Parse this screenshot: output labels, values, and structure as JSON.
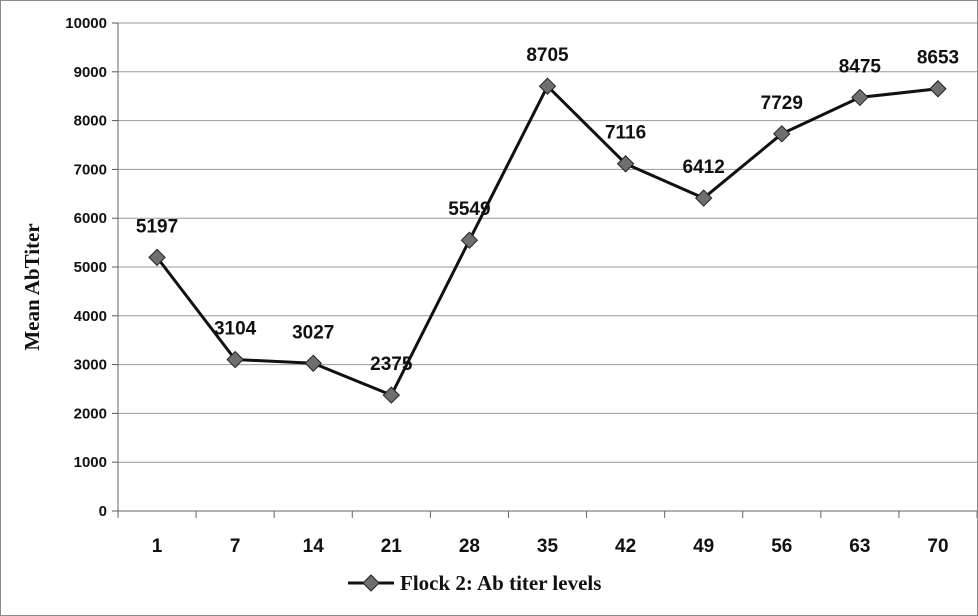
{
  "chart_data": {
    "type": "line",
    "categories": [
      "1",
      "7",
      "14",
      "21",
      "28",
      "35",
      "42",
      "49",
      "56",
      "63",
      "70"
    ],
    "series": [
      {
        "name": "Flock 2: Ab titer levels",
        "values": [
          5197,
          3104,
          3027,
          2375,
          5549,
          8705,
          7116,
          6412,
          7729,
          8475,
          8653
        ]
      }
    ],
    "data_labels": [
      "5197",
      "3104",
      "3027",
      "2375",
      "5549",
      "8705",
      "7116",
      "6412",
      "7729",
      "8475",
      "8653"
    ],
    "ylabel": "Mean AbTiter",
    "xlabel": "",
    "ylim": [
      0,
      10000
    ],
    "yticks": [
      "0",
      "1000",
      "2000",
      "3000",
      "4000",
      "5000",
      "6000",
      "7000",
      "8000",
      "9000",
      "10000"
    ],
    "grid": true,
    "legend_position": "bottom",
    "line_color": "#111111",
    "marker_color": "#6f6f6f",
    "marker_shape": "diamond"
  }
}
